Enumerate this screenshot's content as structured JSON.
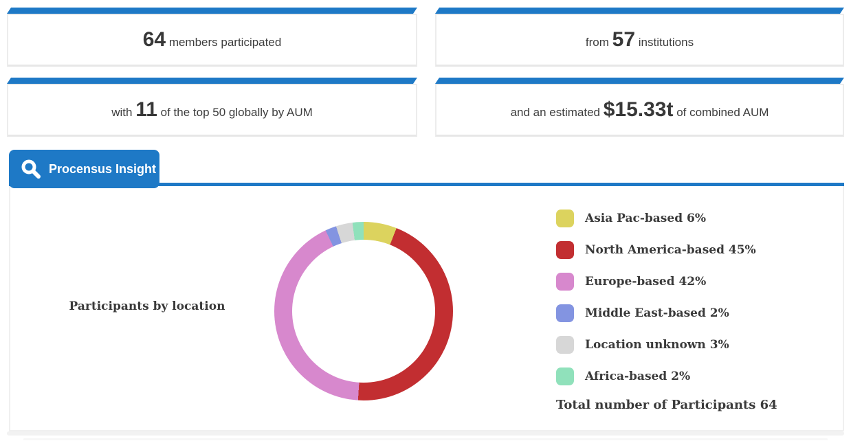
{
  "colors": {
    "accent_blue": "#1e79c6",
    "card_border": "#ececec",
    "text_dark": "#3a3a3a"
  },
  "stats": {
    "cards": [
      {
        "lead": "",
        "value": "64",
        "trail": "members participated"
      },
      {
        "lead": "from",
        "value": "57",
        "trail": "institutions"
      },
      {
        "lead": "with",
        "value": "11",
        "trail": "of the top 50 globally by AUM"
      },
      {
        "lead": "and an estimated",
        "value": "$15.33t",
        "trail": "of combined AUM"
      }
    ]
  },
  "insight_tab": {
    "label": "Procensus Insight",
    "icon": "search-icon"
  },
  "chart_section": {
    "title": "Participants by location",
    "total_label": "Total number of Participants 64"
  },
  "chart_data": {
    "type": "pie",
    "donut": true,
    "title": "Participants by location",
    "start_angle_deg": 0,
    "direction": "clockwise",
    "legend_position": "right",
    "total_participants": 64,
    "segments": [
      {
        "label": "Asia Pac-based",
        "pct": 6,
        "color": "#dcd35e"
      },
      {
        "label": "North America-based",
        "pct": 45,
        "color": "#c22e31"
      },
      {
        "label": "Europe-based",
        "pct": 42,
        "color": "#d788cd"
      },
      {
        "label": "Middle East-based",
        "pct": 2,
        "color": "#8394e1"
      },
      {
        "label": "Location unknown",
        "pct": 3,
        "color": "#d7d7d7"
      },
      {
        "label": "Africa-based",
        "pct": 2,
        "color": "#90e1bb"
      }
    ]
  }
}
